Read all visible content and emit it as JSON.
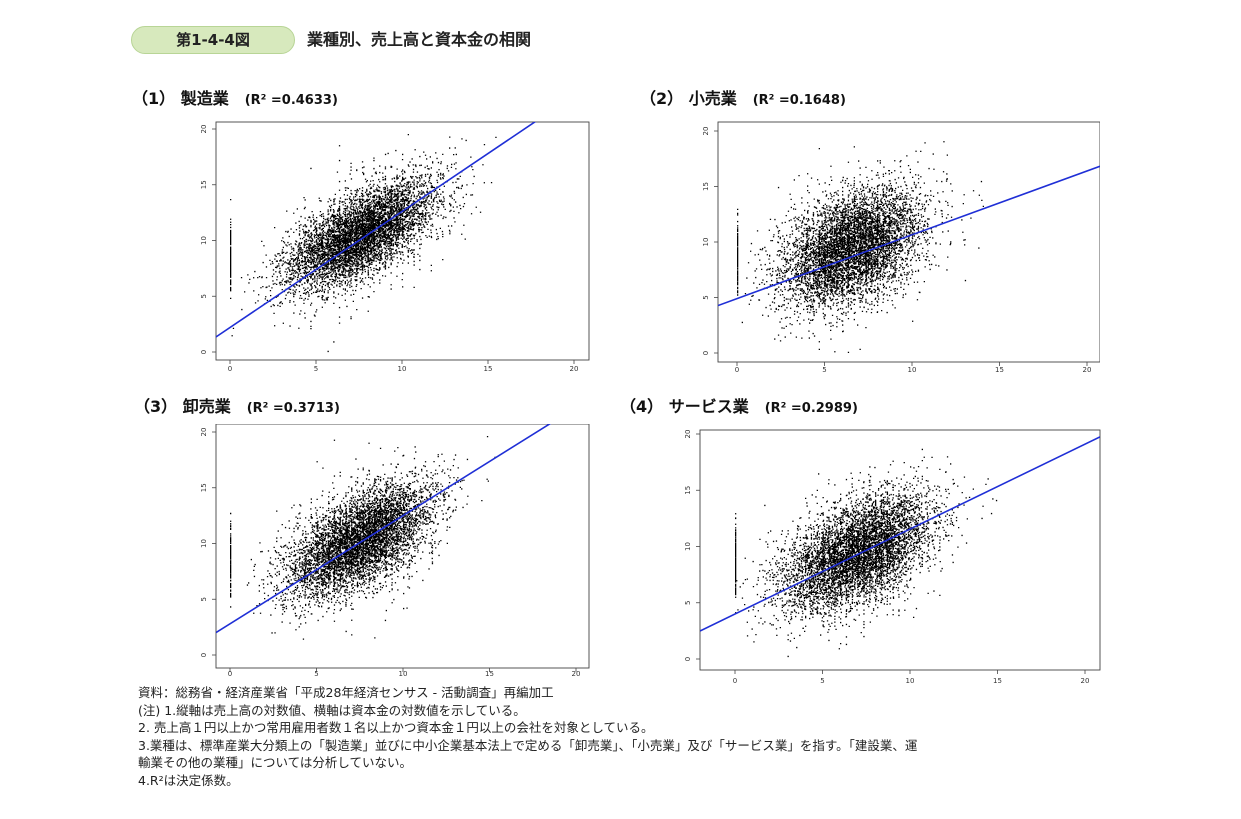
{
  "figure": {
    "badge": "第1-4-4図",
    "title": "業種別、売上高と資本金の相関"
  },
  "chart_data": [
    {
      "type": "scatter",
      "title": "（1） 製造業",
      "r2_label": "(R² =0.4633)",
      "xlim": [
        0,
        20
      ],
      "ylim": [
        0,
        20
      ],
      "x_ticks": [
        "0",
        "5",
        "10",
        "15",
        "20"
      ],
      "y_ticks": [
        "0",
        "5",
        "10",
        "15",
        "20"
      ],
      "regression": {
        "intercept": 2.2,
        "slope": 1.04,
        "color": "#1f2fd6"
      },
      "point_cloud": {
        "center": [
          7.5,
          10.5
        ],
        "correlation": 0.68,
        "spread": [
          2.2,
          2.4
        ],
        "x_range": [
          0,
          17.5
        ],
        "y_range": [
          0,
          20.3
        ]
      },
      "point_color": "#000000"
    },
    {
      "type": "scatter",
      "title": "（2） 小売業",
      "r2_label": "(R² =0.1648)",
      "xlim": [
        0,
        20
      ],
      "ylim": [
        0,
        20
      ],
      "x_ticks": [
        "0",
        "5",
        "10",
        "15",
        "20"
      ],
      "y_ticks": [
        "0",
        "5",
        "10",
        "15",
        "20"
      ],
      "regression": {
        "intercept": 4.9,
        "slope": 0.575,
        "color": "#1f2fd6"
      },
      "point_cloud": {
        "center": [
          6.5,
          9.5
        ],
        "correlation": 0.41,
        "spread": [
          2.0,
          2.6
        ],
        "x_range": [
          0,
          15.8
        ],
        "y_range": [
          0,
          19.2
        ]
      },
      "point_color": "#000000"
    },
    {
      "type": "scatter",
      "title": "（3） 卸売業",
      "r2_label": "(R² =0.3713)",
      "xlim": [
        0,
        20
      ],
      "ylim": [
        0,
        20
      ],
      "x_ticks": [
        "0",
        "5",
        "10",
        "15",
        "20"
      ],
      "y_ticks": [
        "0",
        "5",
        "10",
        "15",
        "20"
      ],
      "regression": {
        "intercept": 2.8,
        "slope": 0.97,
        "color": "#1f2fd6"
      },
      "point_cloud": {
        "center": [
          7.5,
          10.3
        ],
        "correlation": 0.61,
        "spread": [
          2.1,
          2.5
        ],
        "x_range": [
          0,
          18.3
        ],
        "y_range": [
          0,
          20.2
        ]
      },
      "point_color": "#000000"
    },
    {
      "type": "scatter",
      "title": "（4） サービス業",
      "r2_label": "(R² =0.2989)",
      "xlim": [
        0,
        20
      ],
      "ylim": [
        0,
        20
      ],
      "x_ticks": [
        "0",
        "5",
        "10",
        "15",
        "20"
      ],
      "y_ticks": [
        "0",
        "5",
        "10",
        "15",
        "20"
      ],
      "regression": {
        "intercept": 4.0,
        "slope": 0.755,
        "color": "#1f2fd6"
      },
      "point_cloud": {
        "center": [
          7.0,
          9.5
        ],
        "correlation": 0.55,
        "spread": [
          2.2,
          2.6
        ],
        "x_range": [
          0,
          19.6
        ],
        "y_range": [
          0,
          19.6
        ]
      },
      "point_color": "#000000"
    }
  ],
  "notes": [
    "資料：総務省・経済産業省「平成28年経済センサス - 活動調査」再編加工",
    "(注) 1.縦軸は売上高の対数値、横軸は資本金の対数値を示している。",
    "2. 売上高１円以上かつ常用雇用者数１名以上かつ資本金１円以上の会社を対象としている。",
    "3.業種は、標準産業大分類上の「製造業」並びに中小企業基本法上で定める「卸売業」、「小売業」及び「サービス業」を指す。「建設業、運",
    "輸業その他の業種」については分析していない。",
    "4.R²は決定係数。"
  ]
}
